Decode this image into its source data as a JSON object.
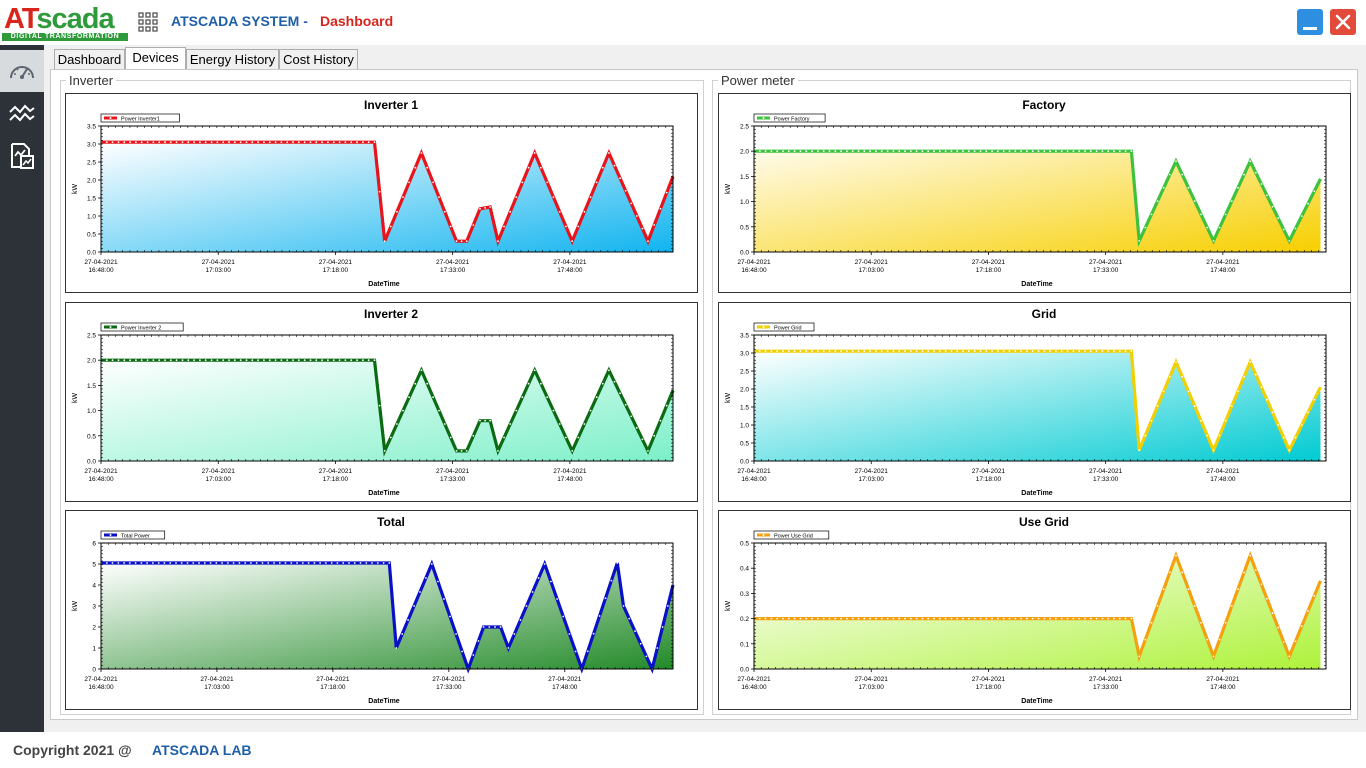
{
  "app": {
    "logo_main_a": "AT",
    "logo_main_b": "scada",
    "logo_sub": "DIGITAL TRANSFORMATION",
    "system_title": "ATSCADA SYSTEM -",
    "page_title": "Dashboard"
  },
  "tabs": [
    {
      "label": "Dashboard",
      "active": false
    },
    {
      "label": "Devices",
      "active": true
    },
    {
      "label": "Energy History",
      "active": false
    },
    {
      "label": "Cost History",
      "active": false
    }
  ],
  "groups": {
    "inverter": "Inverter",
    "power_meter": "Power meter"
  },
  "footer": {
    "copyright": "Copyright 2021 @",
    "lab": "ATSCADA LAB"
  },
  "chart_data": [
    {
      "id": "inverter1",
      "type": "area",
      "title": "Inverter 1",
      "legend": "Power Inverter1",
      "xlabel": "DateTime",
      "ylabel": "kW",
      "ylim": [
        0,
        3.5
      ],
      "yticks": [
        "0.0",
        "0.5",
        "1.0",
        "1.5",
        "2.0",
        "2.5",
        "3.0",
        "3.5"
      ],
      "xticks": [
        [
          "27-04-2021",
          "16:48:00"
        ],
        [
          "27-04-2021",
          "17:03:00"
        ],
        [
          "27-04-2021",
          "17:18:00"
        ],
        [
          "27-04-2021",
          "17:33:00"
        ],
        [
          "27-04-2021",
          "17:48:00"
        ]
      ],
      "line_color": "#e8141b",
      "fill_top": "#ffffff",
      "fill_bottom": "#11b4ef",
      "x": [
        0,
        35,
        36.3,
        41,
        45.5,
        46.8,
        48.5,
        49.8,
        50.8,
        55.5,
        60.3,
        65,
        70,
        73.2
      ],
      "values": [
        3.05,
        3.05,
        0.3,
        2.75,
        0.3,
        0.3,
        1.2,
        1.25,
        0.3,
        2.75,
        0.3,
        2.75,
        0.3,
        2.1
      ]
    },
    {
      "id": "factory",
      "type": "area",
      "title": "Factory",
      "legend": "Power Factory",
      "xlabel": "DateTime",
      "ylabel": "kW",
      "ylim": [
        0,
        2.5
      ],
      "yticks": [
        "0.0",
        "0.5",
        "1.0",
        "1.5",
        "2.0",
        "2.5"
      ],
      "xticks": [
        [
          "27-04-2021",
          "16:48:00"
        ],
        [
          "27-04-2021",
          "17:03:00"
        ],
        [
          "27-04-2021",
          "17:18:00"
        ],
        [
          "27-04-2021",
          "17:33:00"
        ],
        [
          "27-04-2021",
          "17:48:00"
        ]
      ],
      "line_color": "#3cc23c",
      "fill_top": "#fffbea",
      "fill_bottom": "#f7cf00",
      "x": [
        0,
        48.3,
        49.3,
        54,
        58.8,
        63.5,
        68.5,
        72.5
      ],
      "values": [
        2.0,
        2.0,
        0.22,
        1.8,
        0.22,
        1.8,
        0.22,
        1.45
      ]
    },
    {
      "id": "inverter2",
      "type": "area",
      "title": "Inverter 2",
      "legend": "Power Inverter 2",
      "xlabel": "DateTime",
      "ylabel": "kW",
      "ylim": [
        0,
        2.5
      ],
      "yticks": [
        "0.0",
        "0.5",
        "1.0",
        "1.5",
        "2.0",
        "2.5"
      ],
      "xticks": [
        [
          "27-04-2021",
          "16:48:00"
        ],
        [
          "27-04-2021",
          "17:03:00"
        ],
        [
          "27-04-2021",
          "17:18:00"
        ],
        [
          "27-04-2021",
          "17:33:00"
        ],
        [
          "27-04-2021",
          "17:48:00"
        ]
      ],
      "line_color": "#0b6b12",
      "fill_top": "#ffffff",
      "fill_bottom": "#7cf0c8",
      "x": [
        0,
        35,
        36.3,
        41,
        45.5,
        46.8,
        48.5,
        49.8,
        50.8,
        55.5,
        60.3,
        65,
        70,
        73.2
      ],
      "values": [
        2.0,
        2.0,
        0.2,
        1.8,
        0.2,
        0.2,
        0.8,
        0.8,
        0.2,
        1.8,
        0.2,
        1.8,
        0.2,
        1.4
      ]
    },
    {
      "id": "grid",
      "type": "area",
      "title": "Grid",
      "legend": "Power Grid",
      "xlabel": "DateTime",
      "ylabel": "kW",
      "ylim": [
        0,
        3.5
      ],
      "yticks": [
        "0.0",
        "0.5",
        "1.0",
        "1.5",
        "2.0",
        "2.5",
        "3.0",
        "3.5"
      ],
      "xticks": [
        [
          "27-04-2021",
          "16:48:00"
        ],
        [
          "27-04-2021",
          "17:03:00"
        ],
        [
          "27-04-2021",
          "17:18:00"
        ],
        [
          "27-04-2021",
          "17:33:00"
        ],
        [
          "27-04-2021",
          "17:48:00"
        ]
      ],
      "line_color": "#f2cf00",
      "fill_top": "#ffffff",
      "fill_bottom": "#00cbd2",
      "x": [
        0,
        48.3,
        49.3,
        54,
        58.8,
        63.5,
        68.5,
        72.5
      ],
      "values": [
        3.05,
        3.05,
        0.3,
        2.75,
        0.3,
        2.75,
        0.3,
        2.05
      ]
    },
    {
      "id": "total",
      "type": "area",
      "title": "Total",
      "legend": "Total Power",
      "xlabel": "DateTime",
      "ylabel": "kW",
      "ylim": [
        0,
        6
      ],
      "yticks": [
        "0",
        "1",
        "2",
        "3",
        "4",
        "5",
        "6"
      ],
      "xticks": [
        [
          "27-04-2021",
          "16:48:00"
        ],
        [
          "27-04-2021",
          "17:03:00"
        ],
        [
          "27-04-2021",
          "17:18:00"
        ],
        [
          "27-04-2021",
          "17:33:00"
        ],
        [
          "27-04-2021",
          "17:48:00"
        ]
      ],
      "line_color": "#0a10c8",
      "fill_top": "#ffffff",
      "fill_bottom": "#228a28",
      "x": [
        0,
        37.3,
        38.2,
        42.8,
        47.5,
        49.5,
        51.7,
        52.7,
        57.4,
        62.2,
        66.8,
        67.6,
        71.3,
        74
      ],
      "values": [
        5.05,
        5.05,
        1.0,
        5.0,
        0.0,
        2.0,
        2.0,
        1.0,
        5.0,
        0.0,
        5.05,
        3.0,
        0.0,
        4.0
      ]
    },
    {
      "id": "usegrid",
      "type": "area",
      "title": "Use Grid",
      "legend": "Power Use Grid",
      "xlabel": "DateTime",
      "ylabel": "kW",
      "ylim": [
        0,
        0.5
      ],
      "yticks": [
        "0.0",
        "0.1",
        "0.2",
        "0.3",
        "0.4",
        "0.5"
      ],
      "xticks": [
        [
          "27-04-2021",
          "16:48:00"
        ],
        [
          "27-04-2021",
          "17:03:00"
        ],
        [
          "27-04-2021",
          "17:18:00"
        ],
        [
          "27-04-2021",
          "17:33:00"
        ],
        [
          "27-04-2021",
          "17:48:00"
        ]
      ],
      "line_color": "#f5a00f",
      "fill_top": "#ffffff",
      "fill_bottom": "#aef23a",
      "x": [
        0,
        48.3,
        49.3,
        54,
        58.8,
        63.5,
        68.5,
        72.5
      ],
      "values": [
        0.2,
        0.2,
        0.05,
        0.45,
        0.05,
        0.45,
        0.05,
        0.35
      ]
    }
  ]
}
